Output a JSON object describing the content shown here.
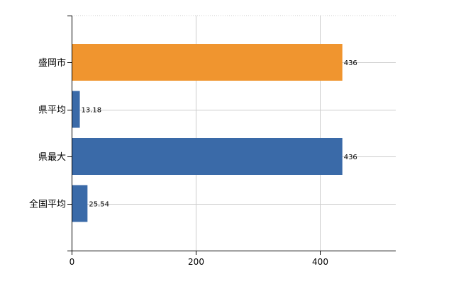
{
  "chart_data": {
    "type": "bar",
    "orientation": "horizontal",
    "categories": [
      "盛岡市",
      "県平均",
      "県最大",
      "全国平均"
    ],
    "values": [
      436,
      13.18,
      436,
      25.54
    ],
    "data_labels": [
      "436",
      "13.18",
      "436",
      "25.54"
    ],
    "bar_colors": [
      "#f0952f",
      "#3a6aa8",
      "#3a6aa8",
      "#3a6aa8"
    ],
    "x_ticks": [
      0,
      200,
      400
    ],
    "x_tick_labels": [
      "0",
      "200",
      "400"
    ],
    "xlim": [
      0,
      522
    ],
    "grid": true,
    "title": "",
    "xlabel": "",
    "ylabel": ""
  },
  "colors": {
    "highlight": "#f0952f",
    "default_bar": "#3a6aa8",
    "grid": "#cccccc",
    "axis": "#000000"
  }
}
